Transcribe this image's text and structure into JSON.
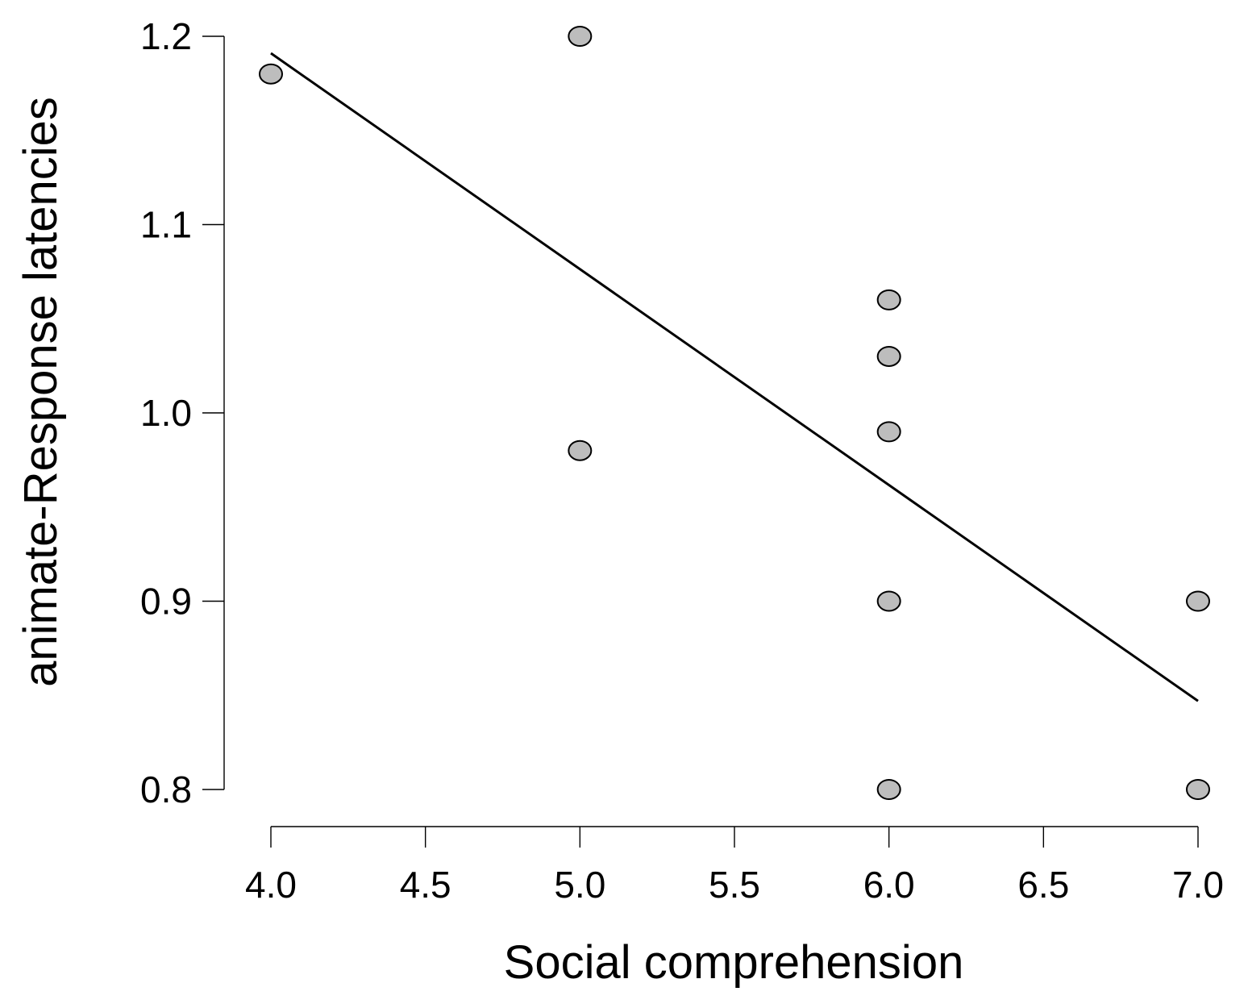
{
  "chart_data": {
    "type": "scatter",
    "title": "",
    "xlabel": "Social comprehension",
    "ylabel": "animate-Response latencies",
    "xlim": [
      4.0,
      7.0
    ],
    "ylim": [
      0.8,
      1.2
    ],
    "x_ticks": [
      "4.0",
      "4.5",
      "5.0",
      "5.5",
      "6.0",
      "6.5",
      "7.0"
    ],
    "y_ticks": [
      "0.8",
      "0.9",
      "1.0",
      "1.1",
      "1.2"
    ],
    "grid": false,
    "legend": "none",
    "series": [
      {
        "points": [
          {
            "x": 4.0,
            "y": 1.18
          },
          {
            "x": 5.0,
            "y": 1.2
          },
          {
            "x": 5.0,
            "y": 0.98
          },
          {
            "x": 6.0,
            "y": 1.06
          },
          {
            "x": 6.0,
            "y": 1.03
          },
          {
            "x": 6.0,
            "y": 0.99
          },
          {
            "x": 6.0,
            "y": 0.9
          },
          {
            "x": 6.0,
            "y": 0.8
          },
          {
            "x": 7.0,
            "y": 0.9
          },
          {
            "x": 7.0,
            "y": 0.8
          }
        ],
        "marker_fill": "#bdbdbd",
        "marker_stroke": "#000000"
      }
    ],
    "trendline": {
      "x": [
        4.0,
        7.0
      ],
      "y": [
        1.191,
        0.847
      ],
      "color": "#000000"
    }
  }
}
